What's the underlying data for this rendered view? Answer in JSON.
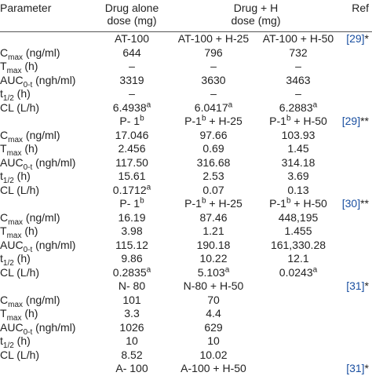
{
  "header": {
    "parameter": "Parameter",
    "drug_alone": [
      "Drug alone",
      "dose (mg)"
    ],
    "drug_h": [
      "Drug + H",
      "dose (mg)"
    ],
    "ref": "Ref"
  },
  "rows": [
    {
      "cells": [
        null,
        [
          {
            "text": "AT-100"
          }
        ],
        [
          {
            "text": "AT-100 + H-25"
          }
        ],
        [
          {
            "text": "AT-100 + H-50"
          }
        ],
        [
          {
            "link": "[29]"
          },
          {
            "text": "*"
          }
        ]
      ]
    },
    {
      "cells": [
        [
          {
            "text": "C"
          },
          {
            "sub": "max"
          },
          {
            "text": " (ng/ml)"
          }
        ],
        [
          {
            "text": "644"
          }
        ],
        [
          {
            "text": "796"
          }
        ],
        [
          {
            "text": "732"
          }
        ],
        null
      ]
    },
    {
      "cells": [
        [
          {
            "text": "T"
          },
          {
            "sub": "max"
          },
          {
            "text": " (h)"
          }
        ],
        [
          {
            "text": "–"
          }
        ],
        [
          {
            "text": "–"
          }
        ],
        [
          {
            "text": "–"
          }
        ],
        null
      ]
    },
    {
      "cells": [
        [
          {
            "text": "AUC"
          },
          {
            "sub": "0-t"
          },
          {
            "text": " (ngh/ml)"
          }
        ],
        [
          {
            "text": "3319"
          }
        ],
        [
          {
            "text": "3630"
          }
        ],
        [
          {
            "text": "3463"
          }
        ],
        null
      ]
    },
    {
      "cells": [
        [
          {
            "text": "t"
          },
          {
            "sub": "1/2"
          },
          {
            "text": " (h)"
          }
        ],
        [
          {
            "text": "–"
          }
        ],
        [
          {
            "text": "–"
          }
        ],
        [
          {
            "text": "–"
          }
        ],
        null
      ]
    },
    {
      "cells": [
        [
          {
            "text": "CL (L/h)"
          }
        ],
        [
          {
            "text": "6.4938"
          },
          {
            "sup": "a"
          }
        ],
        [
          {
            "text": "6.0417"
          },
          {
            "sup": "a"
          }
        ],
        [
          {
            "text": "6.2883"
          },
          {
            "sup": "a"
          }
        ],
        null
      ]
    },
    {
      "cells": [
        null,
        [
          {
            "text": "P- 1"
          },
          {
            "sup": "b"
          }
        ],
        [
          {
            "text": "P-1"
          },
          {
            "sup": "b"
          },
          {
            "text": " + H-25"
          }
        ],
        [
          {
            "text": "P-1"
          },
          {
            "sup": "b"
          },
          {
            "text": " + H-50"
          }
        ],
        [
          {
            "link": "[29]"
          },
          {
            "text": "**"
          }
        ]
      ]
    },
    {
      "cells": [
        [
          {
            "text": "C"
          },
          {
            "sub": "max"
          },
          {
            "text": " (ng/ml)"
          }
        ],
        [
          {
            "text": "17.046"
          }
        ],
        [
          {
            "text": "97.66"
          }
        ],
        [
          {
            "text": "103.93"
          }
        ],
        null
      ]
    },
    {
      "cells": [
        [
          {
            "text": "T"
          },
          {
            "sub": "max"
          },
          {
            "text": " (h)"
          }
        ],
        [
          {
            "text": "2.456"
          }
        ],
        [
          {
            "text": "0.69"
          }
        ],
        [
          {
            "text": "1.45"
          }
        ],
        null
      ]
    },
    {
      "cells": [
        [
          {
            "text": "AUC"
          },
          {
            "sub": "0-t"
          },
          {
            "text": " (ngh/ml)"
          }
        ],
        [
          {
            "text": "117.50"
          }
        ],
        [
          {
            "text": "316.68"
          }
        ],
        [
          {
            "text": "314.18"
          }
        ],
        null
      ]
    },
    {
      "cells": [
        [
          {
            "text": "t"
          },
          {
            "sub": "1/2"
          },
          {
            "text": " (h)"
          }
        ],
        [
          {
            "text": "15.61"
          }
        ],
        [
          {
            "text": "2.53"
          }
        ],
        [
          {
            "text": "3.69"
          }
        ],
        null
      ]
    },
    {
      "cells": [
        [
          {
            "text": "CL (L/h)"
          }
        ],
        [
          {
            "text": "0.1712"
          },
          {
            "sup": "a"
          }
        ],
        [
          {
            "text": "0.07"
          }
        ],
        [
          {
            "text": "0.13"
          }
        ],
        null
      ]
    },
    {
      "cells": [
        null,
        [
          {
            "text": "P- 1"
          },
          {
            "sup": "b"
          }
        ],
        [
          {
            "text": "P-1"
          },
          {
            "sup": "b"
          },
          {
            "text": " + H-25"
          }
        ],
        [
          {
            "text": "P-1"
          },
          {
            "sup": "b"
          },
          {
            "text": " + H-50"
          }
        ],
        [
          {
            "link": "[30]"
          },
          {
            "text": "**"
          }
        ]
      ]
    },
    {
      "cells": [
        [
          {
            "text": "C"
          },
          {
            "sub": "max"
          },
          {
            "text": " (ng/ml)"
          }
        ],
        [
          {
            "text": "16.19"
          }
        ],
        [
          {
            "text": "87.46"
          }
        ],
        [
          {
            "text": "448,195"
          }
        ],
        null
      ]
    },
    {
      "cells": [
        [
          {
            "text": "T"
          },
          {
            "sub": "max"
          },
          {
            "text": " (h)"
          }
        ],
        [
          {
            "text": "3.98"
          }
        ],
        [
          {
            "text": "1.21"
          }
        ],
        [
          {
            "text": "1.455"
          }
        ],
        null
      ]
    },
    {
      "cells": [
        [
          {
            "text": "AUC"
          },
          {
            "sub": "0-t"
          },
          {
            "text": " (ngh/ml)"
          }
        ],
        [
          {
            "text": "115.12"
          }
        ],
        [
          {
            "text": "190.18"
          }
        ],
        [
          {
            "text": "161,330.28"
          }
        ],
        null
      ]
    },
    {
      "cells": [
        [
          {
            "text": "t"
          },
          {
            "sub": "1/2"
          },
          {
            "text": " (h)"
          }
        ],
        [
          {
            "text": "9.86"
          }
        ],
        [
          {
            "text": "10.22"
          }
        ],
        [
          {
            "text": "12.1"
          }
        ],
        null
      ]
    },
    {
      "cells": [
        [
          {
            "text": "CL (L/h)"
          }
        ],
        [
          {
            "text": "0.2835"
          },
          {
            "sup": "a"
          }
        ],
        [
          {
            "text": "5.103"
          },
          {
            "sup": "a"
          }
        ],
        [
          {
            "text": "0.0243"
          },
          {
            "sup": "a"
          }
        ],
        null
      ]
    },
    {
      "cells": [
        null,
        [
          {
            "text": "N- 80"
          }
        ],
        [
          {
            "text": "N-80 + H-50"
          }
        ],
        null,
        [
          {
            "link": "[31]"
          },
          {
            "text": "*"
          }
        ]
      ]
    },
    {
      "cells": [
        [
          {
            "text": "C"
          },
          {
            "sub": "max"
          },
          {
            "text": " (ng/ml)"
          }
        ],
        [
          {
            "text": "101"
          }
        ],
        [
          {
            "text": "70"
          }
        ],
        null,
        null
      ]
    },
    {
      "cells": [
        [
          {
            "text": "T"
          },
          {
            "sub": "max"
          },
          {
            "text": " (h)"
          }
        ],
        [
          {
            "text": "3.3"
          }
        ],
        [
          {
            "text": "4.4"
          }
        ],
        null,
        null
      ]
    },
    {
      "cells": [
        [
          {
            "text": "AUC"
          },
          {
            "sub": "0-t"
          },
          {
            "text": " (ngh/ml)"
          }
        ],
        [
          {
            "text": "1026"
          }
        ],
        [
          {
            "text": "629"
          }
        ],
        null,
        null
      ]
    },
    {
      "cells": [
        [
          {
            "text": "t"
          },
          {
            "sub": "1/2"
          },
          {
            "text": " (h)"
          }
        ],
        [
          {
            "text": "10"
          }
        ],
        [
          {
            "text": "10"
          }
        ],
        null,
        null
      ]
    },
    {
      "cells": [
        [
          {
            "text": "CL (L/h)"
          }
        ],
        [
          {
            "text": "8.52"
          }
        ],
        [
          {
            "text": "10.02"
          }
        ],
        null,
        null
      ]
    },
    {
      "cells": [
        null,
        [
          {
            "text": "A- 100"
          }
        ],
        [
          {
            "text": "A-100 + H-50"
          }
        ],
        null,
        [
          {
            "link": "[31]"
          },
          {
            "text": "*"
          }
        ]
      ]
    }
  ]
}
